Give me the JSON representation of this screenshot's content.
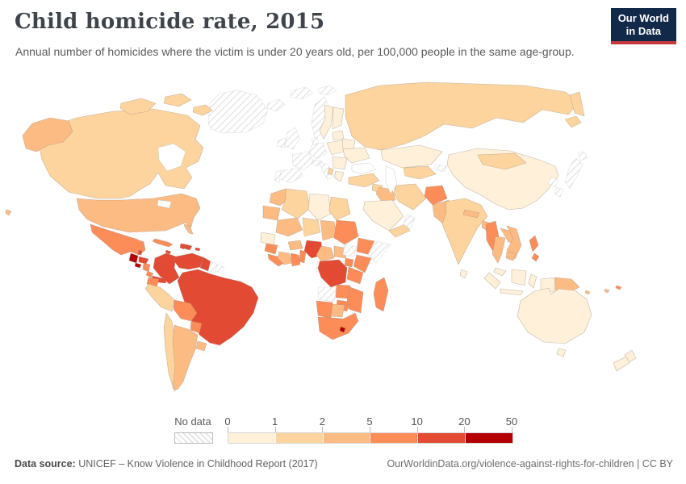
{
  "header": {
    "title": "Child homicide rate, 2015",
    "subtitle": "Annual number of homicides where the victim is under 20 years old, per 100,000 people in the same age-group."
  },
  "logo": {
    "line1": "Our World",
    "line2": "in Data",
    "bg_color": "#12294a",
    "accent_color": "#c5383c"
  },
  "legend": {
    "no_data_label": "No data",
    "tick_labels": [
      "0",
      "1",
      "2",
      "5",
      "10",
      "20",
      "50"
    ]
  },
  "footer": {
    "source_label": "Data source:",
    "source_text": " UNICEF – Know Violence in Childhood Report (2017)",
    "right_text": "OurWorldinData.org/violence-against-rights-for-children | CC BY"
  },
  "chart_data": {
    "type": "heatmap",
    "subtype": "choropleth-world-map",
    "title": "Child homicide rate, 2015",
    "unit": "annual homicides per 100,000 people under 20 years old",
    "legend": {
      "no_data_label": "No data",
      "tick_labels": [
        "0",
        "1",
        "2",
        "5",
        "10",
        "20",
        "50"
      ],
      "thresholds": [
        0,
        1,
        2,
        5,
        10,
        20,
        50
      ],
      "bins": [
        {
          "range": "0-1",
          "color": "#fef0d9"
        },
        {
          "range": "1-2",
          "color": "#fdd49e"
        },
        {
          "range": "2-5",
          "color": "#fdbb84"
        },
        {
          "range": "5-10",
          "color": "#fc8d59"
        },
        {
          "range": "10-20",
          "color": "#e34a33"
        },
        {
          "range": "20-50",
          "color": "#b30000"
        }
      ]
    },
    "country_bins": {
      "canada": "1-2",
      "united_states": "2-5",
      "mexico": "5-10",
      "belize": "10-20",
      "guatemala": "20-50",
      "el_salvador": "20-50",
      "honduras": "10-20",
      "nicaragua": "5-10",
      "costa_rica": "5-10",
      "panama": "10-20",
      "cuba": "5-10",
      "jamaica": "10-20",
      "haiti": "10-20",
      "dominican_republic": "10-20",
      "puerto_rico": "10-20",
      "colombia": "10-20",
      "venezuela": "10-20",
      "guyana": "10-20",
      "suriname": "no-data",
      "french_guiana": "no-data",
      "ecuador": "5-10",
      "peru": "1-2",
      "brazil": "10-20",
      "bolivia": "5-10",
      "paraguay": "5-10",
      "chile": "1-2",
      "argentina": "2-5",
      "uruguay": "2-5",
      "greenland": "no-data",
      "iceland": "no-data",
      "svalbard": "no-data",
      "norway": "no-data",
      "sweden": "0-1",
      "finland": "0-1",
      "denmark": "no-data",
      "united_kingdom": "no-data",
      "ireland": "no-data",
      "france": "no-data",
      "spain": "no-data",
      "portugal": "no-data",
      "germany": "no-data",
      "austria": "no-data",
      "italy": "no-data",
      "poland": "0-1",
      "lithuania": "0-1",
      "belarus": "0-1",
      "ukraine": "0-1",
      "romania": "0-1",
      "greece": "0-1",
      "albania": "1-2",
      "russia": "1-2",
      "kazakhstan": "0-1",
      "uzbekistan": "1-2",
      "kyrgyzstan": "no-data",
      "turkey": "1-2",
      "syria": "1-2",
      "iraq": "2-5",
      "iran": "1-2",
      "afghanistan": "5-10",
      "pakistan": "2-5",
      "saudi_arabia": "0-1",
      "yemen": "1-2",
      "oman": "no-data",
      "india": "1-2",
      "nepal": "2-5",
      "bangladesh": "2-5",
      "sri_lanka": "0-1",
      "china": "0-1",
      "mongolia": "1-2",
      "north_korea": "no-data",
      "south_korea": "no-data",
      "japan": "no-data",
      "myanmar": "5-10",
      "thailand": "2-5",
      "laos": "2-5",
      "vietnam": "2-5",
      "cambodia": "2-5",
      "malaysia": "0-1",
      "indonesia": "0-1",
      "philippines": "5-10",
      "papua_new_guinea": "2-5",
      "solomon_islands": "2-5",
      "fiji": "2-5",
      "vanuatu": "5-10",
      "australia": "0-1",
      "new_zealand": "0-1",
      "morocco": "2-5",
      "algeria": "1-2",
      "libya": "0-1",
      "egypt": "1-2",
      "mauritania": "2-5",
      "mali": "2-5",
      "niger": "1-2",
      "chad": "2-5",
      "sudan": "5-10",
      "south_sudan": "no-data",
      "senegal": "0-1",
      "guinea": "5-10",
      "sierra_leone": "5-10",
      "ivory_coast": "2-5",
      "burkina_faso": "2-5",
      "ghana": "5-10",
      "benin": "5-10",
      "nigeria": "10-20",
      "cameroon": "2-5",
      "central_african_republic": "2-5",
      "gabon": "no-data",
      "ethiopia": "5-10",
      "somalia": "no-data",
      "kenya": "5-10",
      "uganda": "5-10",
      "tanzania": "5-10",
      "dr_congo": "10-20",
      "angola": "no-data",
      "zambia": "5-10",
      "mozambique": "5-10",
      "zimbabwe": "5-10",
      "namibia": "5-10",
      "botswana": "2-5",
      "south_africa": "5-10",
      "lesotho": "20-50",
      "madagascar": "5-10"
    }
  }
}
